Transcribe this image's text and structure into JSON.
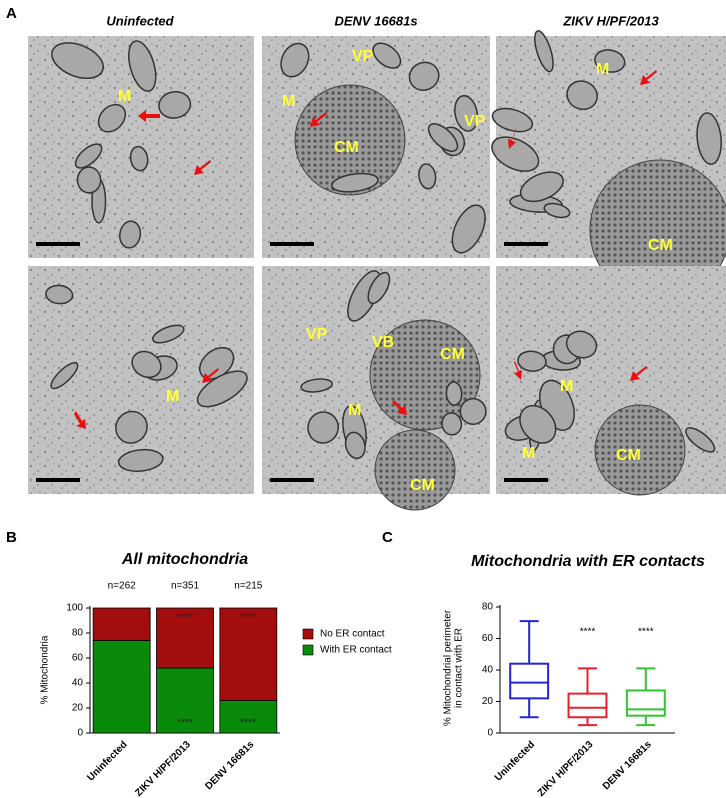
{
  "figure": {
    "panel_labels": [
      "A",
      "B",
      "C"
    ]
  },
  "panel_a": {
    "columns": [
      "Uninfected",
      "DENV 16681s",
      "ZIKV H/PF/2013"
    ],
    "images": [
      {
        "labels": [
          "M"
        ]
      },
      {
        "labels": [
          "M",
          "VP",
          "CM",
          "VP"
        ]
      },
      {
        "labels": [
          "M",
          "CM"
        ]
      },
      {
        "labels": [
          "M"
        ]
      },
      {
        "labels": [
          "VP",
          "VB",
          "CM",
          "M",
          "CM"
        ]
      },
      {
        "labels": [
          "M",
          "M",
          "CM"
        ]
      }
    ]
  },
  "chart_data": [
    {
      "type": "stacked_bar",
      "title": "All mitochondria",
      "n_labels": [
        "n=262",
        "n=351",
        "n=215"
      ],
      "ylabel": "% Mitochondria",
      "categories": [
        "Uninfected",
        "ZIKV H/PF/2013",
        "DENV 16681s"
      ],
      "series": [
        {
          "name": "With ER contact",
          "color": "#0a8a0a",
          "values": [
            74,
            52,
            26
          ],
          "annotations": [
            null,
            "****",
            "****"
          ]
        },
        {
          "name": "No ER contact",
          "color": "#a30d0d",
          "values": [
            26,
            48,
            74
          ],
          "annotations": [
            null,
            "****",
            "****"
          ]
        }
      ],
      "ylim": [
        0,
        100
      ],
      "yticks": [
        0,
        20,
        40,
        60,
        80,
        100
      ]
    },
    {
      "type": "box",
      "title": "Mitochondria with ER contacts",
      "ylabel": [
        "% Mitochondrial perimeter",
        "in contact with  ER"
      ],
      "categories": [
        "Uninfected",
        "ZIKV H/PF/2013",
        "DENV 16681s"
      ],
      "colors": [
        "#2424d8",
        "#e8202a",
        "#33c433"
      ],
      "min": [
        10,
        5,
        5
      ],
      "q1": [
        22,
        10,
        11
      ],
      "median": [
        32,
        16,
        15
      ],
      "q3": [
        44,
        25,
        27
      ],
      "max": [
        71,
        41,
        41
      ],
      "annotations": [
        null,
        "****",
        "****"
      ],
      "ylim": [
        0,
        80
      ],
      "yticks": [
        0,
        20,
        40,
        60,
        80
      ]
    }
  ]
}
